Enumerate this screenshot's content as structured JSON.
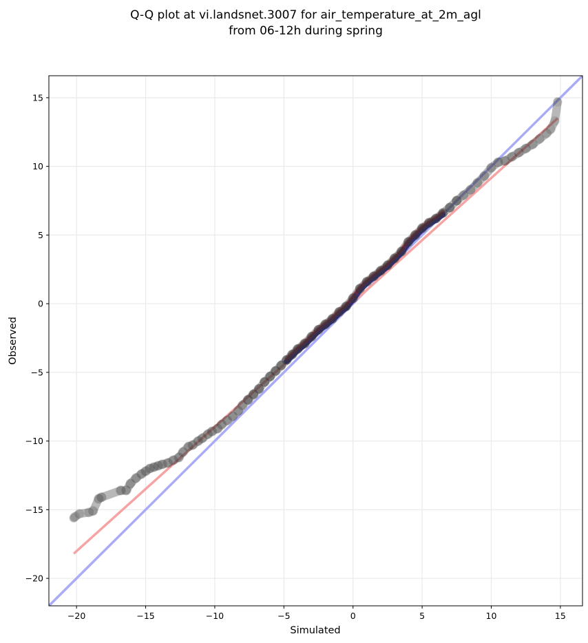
{
  "chart_data": {
    "type": "scatter",
    "title": [
      "Q-Q plot at vi.landsnet.3007 for air_temperature_at_2m_agl",
      "from 06-12h during spring"
    ],
    "xlabel": "Simulated",
    "ylabel": "Observed",
    "xlim": [
      -22,
      16.6
    ],
    "ylim": [
      -22,
      16.6
    ],
    "xticks": [
      -20,
      -15,
      -10,
      -5,
      0,
      5,
      10,
      15
    ],
    "yticks": [
      -20,
      -15,
      -10,
      -5,
      0,
      5,
      10,
      15
    ],
    "xtick_labels": [
      "−20",
      "−15",
      "−10",
      "−5",
      "0",
      "5",
      "10",
      "15"
    ],
    "ytick_labels": [
      "−20",
      "−15",
      "−10",
      "−5",
      "0",
      "5",
      "10",
      "15"
    ],
    "grid": true,
    "legend": "none",
    "colors": {
      "points": "#333333",
      "identity_line": "#a9abf6",
      "fit_line": "#f5a3a3",
      "dense_blue": "#1a1a9c",
      "dense_red": "#a8201e",
      "grid": "#ebebeb"
    },
    "identity_line": {
      "x": [
        -22,
        16.6
      ],
      "y": [
        -22,
        16.6
      ]
    },
    "fit_line": {
      "x": [
        -20.2,
        14.8
      ],
      "y": [
        -18.2,
        13.5
      ]
    },
    "points": {
      "x": [
        -20.2,
        -20.1,
        -19.8,
        -19.1,
        -18.8,
        -18.4,
        -18.2,
        -16.8,
        -16.4,
        -16.1,
        -15.7,
        -15.3,
        -15.0,
        -14.7,
        -14.4,
        -14.1,
        -13.8,
        -13.4,
        -13.0,
        -12.6,
        -12.3,
        -11.9,
        -11.6,
        -11.2,
        -10.9,
        -10.5,
        -10.2,
        -9.8,
        -9.5,
        -9.1,
        -8.7,
        -8.3,
        -8.0,
        -7.6,
        -7.2,
        -6.8,
        -6.4,
        -6.0,
        -5.6,
        -5.2,
        -4.8,
        -4.4,
        -4.0,
        -3.5,
        -3.0,
        -2.5,
        -2.0,
        -1.5,
        -1.0,
        -0.5,
        0.0,
        0.5,
        1.0,
        1.5,
        2.0,
        2.5,
        3.0,
        3.5,
        4.0,
        4.5,
        5.0,
        5.5,
        6.0,
        6.5,
        7.0,
        7.5,
        8.0,
        8.5,
        9.0,
        9.5,
        10.0,
        10.5,
        11.0,
        11.5,
        12.0,
        12.5,
        13.0,
        13.5,
        14.0,
        14.3,
        14.6,
        14.8
      ],
      "y": [
        -15.6,
        -15.5,
        -15.3,
        -15.2,
        -15.1,
        -14.2,
        -14.1,
        -13.6,
        -13.6,
        -13.1,
        -12.7,
        -12.4,
        -12.2,
        -12.0,
        -11.9,
        -11.8,
        -11.7,
        -11.6,
        -11.4,
        -11.2,
        -10.8,
        -10.4,
        -10.3,
        -10.0,
        -9.8,
        -9.5,
        -9.3,
        -9.1,
        -8.8,
        -8.5,
        -8.2,
        -7.8,
        -7.4,
        -7.0,
        -6.6,
        -6.2,
        -5.7,
        -5.3,
        -4.9,
        -4.5,
        -4.1,
        -3.7,
        -3.3,
        -2.9,
        -2.4,
        -1.9,
        -1.5,
        -1.1,
        -0.6,
        -0.2,
        0.4,
        1.1,
        1.6,
        2.0,
        2.4,
        2.8,
        3.3,
        3.8,
        4.5,
        5.0,
        5.5,
        5.9,
        6.2,
        6.6,
        7.0,
        7.5,
        7.9,
        8.3,
        8.8,
        9.3,
        9.9,
        10.3,
        10.4,
        10.7,
        11.0,
        11.3,
        11.6,
        12.0,
        12.4,
        12.7,
        13.3,
        14.7
      ]
    }
  }
}
